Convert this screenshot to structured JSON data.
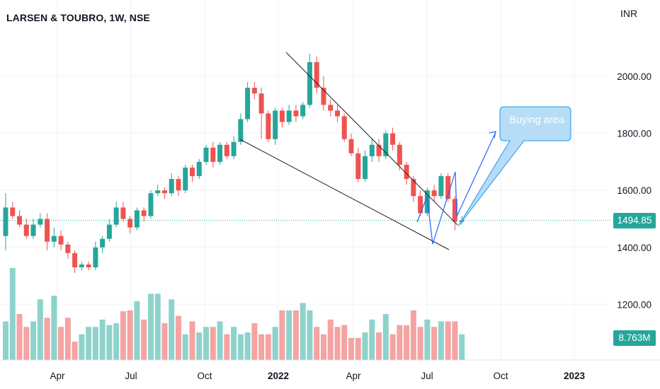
{
  "header": {
    "symbol_title": "LARSEN & TOUBRO, 1W, NSE",
    "currency": "INR"
  },
  "annotation": {
    "label": "Buying area"
  },
  "colors": {
    "up": "#26a69a",
    "down": "#ef5350",
    "vol_up": "#8ed3cb",
    "vol_down": "#f5a3a3",
    "trendline": "#222222",
    "projection": "#2962ff",
    "callout_fill": "#a9d6f5",
    "callout_stroke": "#2196f3",
    "grid": "#eef0f3"
  },
  "chart_data": {
    "type": "candlestick",
    "x_ticks": [
      "Apr",
      "Jul",
      "Oct",
      "2022",
      "Apr",
      "Jul",
      "Oct",
      "2023"
    ],
    "y_ticks": [
      "2000.00",
      "1800.00",
      "1600.00",
      "1400.00",
      "1200.00"
    ],
    "y_tick_values": [
      2000,
      1800,
      1600,
      1400,
      1200
    ],
    "ylim": [
      1085,
      2200
    ],
    "last_price": {
      "label": "1494.85",
      "value": 1494.85
    },
    "last_volume": {
      "label": "8.763M"
    },
    "candles": [
      [
        1440,
        1540,
        1590,
        1390
      ],
      [
        1540,
        1510,
        1560,
        1500
      ],
      [
        1510,
        1480,
        1530,
        1470
      ],
      [
        1480,
        1440,
        1500,
        1430
      ],
      [
        1440,
        1480,
        1500,
        1430
      ],
      [
        1480,
        1500,
        1520,
        1470
      ],
      [
        1500,
        1420,
        1520,
        1390
      ],
      [
        1420,
        1440,
        1470,
        1400
      ],
      [
        1440,
        1410,
        1460,
        1390
      ],
      [
        1410,
        1380,
        1420,
        1360
      ],
      [
        1380,
        1330,
        1390,
        1310
      ],
      [
        1330,
        1340,
        1350,
        1320
      ],
      [
        1340,
        1330,
        1350,
        1320
      ],
      [
        1330,
        1400,
        1420,
        1320
      ],
      [
        1400,
        1430,
        1440,
        1380
      ],
      [
        1430,
        1480,
        1500,
        1420
      ],
      [
        1480,
        1540,
        1560,
        1470
      ],
      [
        1540,
        1500,
        1560,
        1490
      ],
      [
        1500,
        1470,
        1510,
        1450
      ],
      [
        1470,
        1530,
        1540,
        1460
      ],
      [
        1530,
        1510,
        1540,
        1490
      ],
      [
        1510,
        1590,
        1600,
        1500
      ],
      [
        1590,
        1600,
        1620,
        1580
      ],
      [
        1600,
        1590,
        1610,
        1570
      ],
      [
        1590,
        1640,
        1660,
        1580
      ],
      [
        1640,
        1600,
        1650,
        1580
      ],
      [
        1600,
        1680,
        1690,
        1590
      ],
      [
        1680,
        1650,
        1690,
        1630
      ],
      [
        1650,
        1700,
        1710,
        1640
      ],
      [
        1700,
        1750,
        1760,
        1690
      ],
      [
        1750,
        1700,
        1770,
        1680
      ],
      [
        1700,
        1760,
        1770,
        1690
      ],
      [
        1760,
        1720,
        1770,
        1710
      ],
      [
        1720,
        1770,
        1790,
        1710
      ],
      [
        1770,
        1850,
        1870,
        1760
      ],
      [
        1850,
        1960,
        1980,
        1840
      ],
      [
        1960,
        1940,
        1980,
        1920
      ],
      [
        1940,
        1870,
        1960,
        1780
      ],
      [
        1870,
        1780,
        1880,
        1770
      ],
      [
        1780,
        1880,
        1890,
        1760
      ],
      [
        1880,
        1840,
        1890,
        1820
      ],
      [
        1840,
        1880,
        1900,
        1830
      ],
      [
        1880,
        1860,
        1900,
        1840
      ],
      [
        1860,
        1900,
        1910,
        1850
      ],
      [
        1900,
        2050,
        2080,
        1890
      ],
      [
        2050,
        1960,
        2070,
        1940
      ],
      [
        1960,
        1900,
        2000,
        1880
      ],
      [
        1900,
        1880,
        1920,
        1860
      ],
      [
        1880,
        1860,
        1900,
        1840
      ],
      [
        1860,
        1780,
        1870,
        1770
      ],
      [
        1780,
        1730,
        1800,
        1720
      ],
      [
        1730,
        1640,
        1750,
        1630
      ],
      [
        1640,
        1720,
        1740,
        1630
      ],
      [
        1720,
        1760,
        1780,
        1700
      ],
      [
        1760,
        1720,
        1780,
        1700
      ],
      [
        1720,
        1800,
        1810,
        1710
      ],
      [
        1800,
        1760,
        1820,
        1740
      ],
      [
        1760,
        1690,
        1770,
        1670
      ],
      [
        1690,
        1640,
        1700,
        1620
      ],
      [
        1640,
        1580,
        1650,
        1560
      ],
      [
        1580,
        1520,
        1600,
        1510
      ],
      [
        1520,
        1600,
        1610,
        1510
      ],
      [
        1600,
        1580,
        1620,
        1560
      ],
      [
        1580,
        1650,
        1660,
        1570
      ],
      [
        1650,
        1570,
        1660,
        1560
      ],
      [
        1570,
        1490,
        1580,
        1460
      ],
      [
        1490,
        1495,
        1510,
        1480
      ]
    ],
    "volume_up": [
      true,
      true,
      false,
      false,
      true,
      true,
      false,
      true,
      false,
      false,
      false,
      true,
      true,
      true,
      true,
      true,
      true,
      false,
      false,
      true,
      false,
      true,
      true,
      false,
      true,
      false,
      true,
      false,
      true,
      true,
      false,
      true,
      false,
      true,
      true,
      true,
      false,
      false,
      false,
      true,
      false,
      true,
      false,
      true,
      true,
      false,
      false,
      false,
      false,
      false,
      false,
      false,
      true,
      true,
      false,
      true,
      false,
      false,
      false,
      false,
      false,
      true,
      false,
      true,
      false,
      false,
      true
    ],
    "volume_levels": [
      0.42,
      1.0,
      0.5,
      0.36,
      0.42,
      0.66,
      0.46,
      0.7,
      0.36,
      0.46,
      0.2,
      0.28,
      0.36,
      0.36,
      0.44,
      0.38,
      0.4,
      0.53,
      0.54,
      0.64,
      0.44,
      0.72,
      0.72,
      0.4,
      0.66,
      0.48,
      0.28,
      0.42,
      0.3,
      0.36,
      0.36,
      0.42,
      0.28,
      0.36,
      0.28,
      0.3,
      0.4,
      0.28,
      0.28,
      0.36,
      0.54,
      0.54,
      0.54,
      0.62,
      0.54,
      0.36,
      0.28,
      0.44,
      0.36,
      0.38,
      0.24,
      0.24,
      0.3,
      0.44,
      0.3,
      0.5,
      0.28,
      0.38,
      0.38,
      0.54,
      0.36,
      0.44,
      0.36,
      0.42,
      0.42,
      0.42,
      0.28
    ]
  }
}
